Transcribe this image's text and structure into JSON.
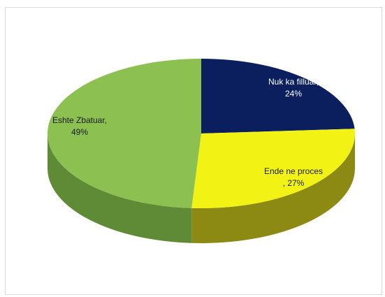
{
  "chart_data": {
    "type": "pie",
    "style": "3d",
    "title": "",
    "slices": [
      {
        "label_line1": "Nuk ka filluar,",
        "label_line2": "24%",
        "value": 24,
        "color": "#0b1f5e",
        "side_color": "#071440",
        "text_color": "#ffffff"
      },
      {
        "label_line1": "Ende ne proces",
        "label_line2": ", 27%",
        "value": 27,
        "color": "#f2f215",
        "side_color": "#8c8a12",
        "text_color": "#1a1a1a"
      },
      {
        "label_line1": "Eshte Zbatuar,",
        "label_line2": "49%",
        "value": 49,
        "color": "#8cc152",
        "side_color": "#5f8a36",
        "text_color": "#1a1a1a"
      }
    ]
  }
}
